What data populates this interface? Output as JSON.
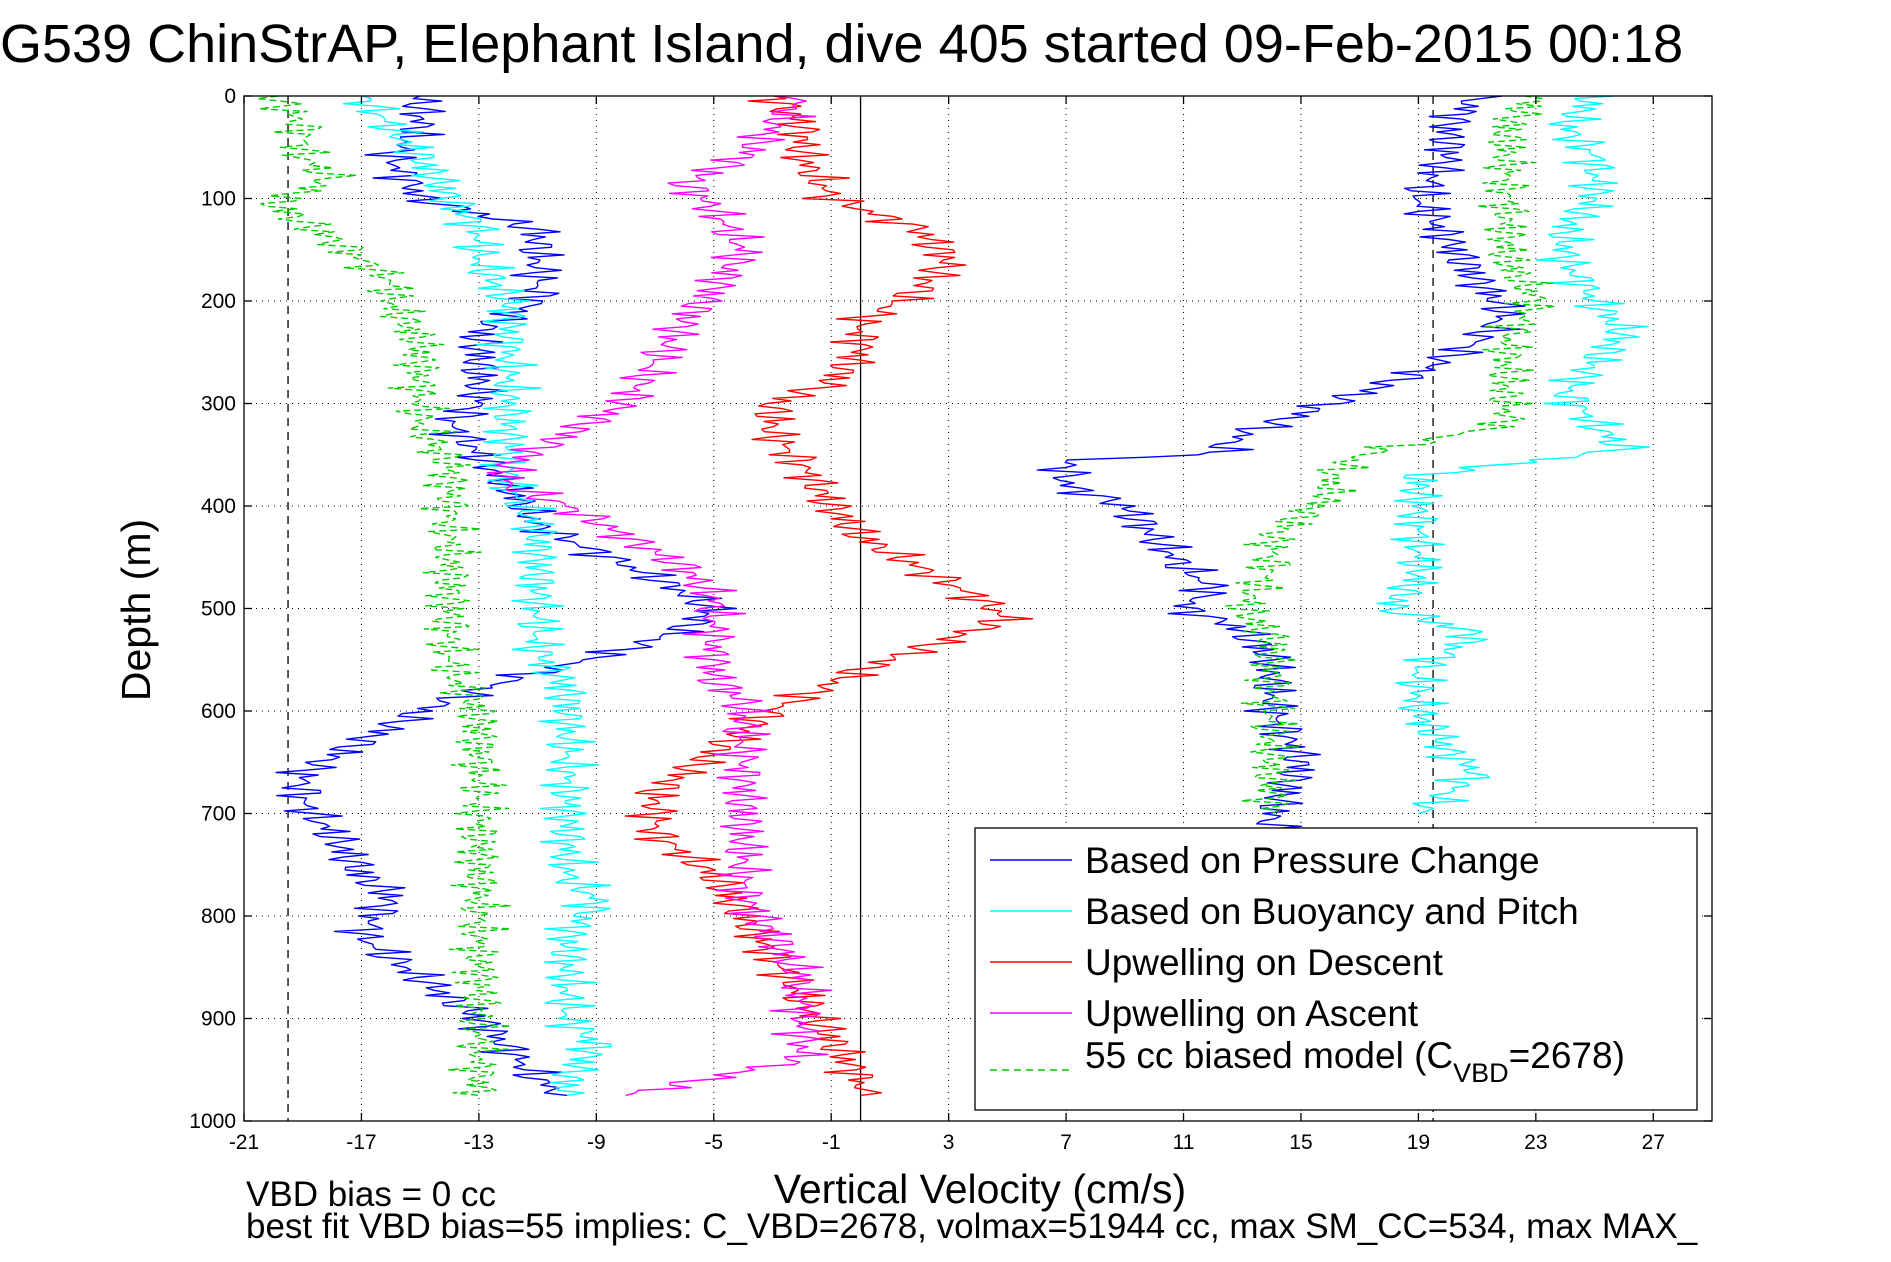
{
  "chart_data": {
    "type": "line",
    "title": "G539 ChinStrAP, Elephant Island, dive 405 started 09-Feb-2015 00:18",
    "xlabel": "Vertical Velocity (cm/s)",
    "ylabel": "Depth (m)",
    "xlim": [
      -21,
      29
    ],
    "ylim": [
      0,
      1000
    ],
    "y_reversed": true,
    "grid": true,
    "legend_position": "bottom-right",
    "x_ticks": [
      -21,
      -17,
      -13,
      -9,
      -5,
      -1,
      3,
      7,
      11,
      15,
      19,
      23,
      27
    ],
    "x_tick_labels": [
      "-21",
      "-17",
      "-13",
      "-9",
      "-5",
      "-1",
      "3",
      "7",
      "11",
      "15",
      "19",
      "23",
      "27"
    ],
    "y_ticks": [
      0,
      100,
      200,
      300,
      400,
      500,
      600,
      700,
      800,
      900,
      1000
    ],
    "y_tick_labels": [
      "0",
      "100",
      "200",
      "300",
      "400",
      "500",
      "600",
      "700",
      "800",
      "900",
      "1000"
    ],
    "reference_lines": [
      {
        "x": -19.5,
        "style": "dashed"
      },
      {
        "x": 0,
        "style": "solid"
      },
      {
        "x": 19.5,
        "style": "dashed"
      }
    ],
    "series": [
      {
        "name": "Based on Pressure Change",
        "color": "#0000ff",
        "depth": [
          0,
          30,
          60,
          100,
          130,
          160,
          200,
          230,
          270,
          300,
          320,
          350,
          380,
          420,
          470,
          500,
          520,
          540,
          570,
          600,
          630,
          660,
          690,
          720,
          760,
          780,
          820,
          860,
          900,
          930,
          960,
          975
        ],
        "velocity": [
          -15,
          -15,
          -16,
          -15,
          -11,
          -11,
          -11,
          -13,
          -13,
          -13,
          -14,
          -13,
          -12,
          -11,
          -7,
          -5,
          -6,
          -8,
          -12,
          -15,
          -17,
          -19,
          -19,
          -18,
          -17,
          -16,
          -17,
          -15,
          -13,
          -12,
          -11,
          -10
        ]
      },
      {
        "name": "Based on Pressure Change",
        "color": "#0000ff",
        "depth": [
          0,
          30,
          60,
          100,
          140,
          180,
          210,
          240,
          270,
          290,
          310,
          330,
          350,
          355,
          380,
          400,
          430,
          460,
          480,
          500,
          520,
          550,
          600,
          650,
          700,
          720
        ],
        "velocity": [
          21,
          20,
          20,
          19,
          20,
          21,
          22,
          21,
          19,
          17,
          15,
          13,
          12,
          7,
          7,
          9,
          10,
          11,
          12,
          11,
          13,
          14,
          14,
          15,
          14,
          14
        ]
      },
      {
        "name": "Based on Buoyancy and Pitch",
        "color": "#00ffff",
        "depth": [
          0,
          30,
          60,
          100,
          130,
          160,
          200,
          250,
          300,
          340,
          380,
          420,
          460,
          500,
          540,
          580,
          620,
          660,
          700,
          760,
          785,
          820,
          860,
          900,
          925,
          960,
          975
        ],
        "velocity": [
          -17,
          -16,
          -15,
          -14,
          -13,
          -13,
          -12,
          -12,
          -12,
          -12,
          -12,
          -11,
          -11,
          -11,
          -11,
          -10,
          -10,
          -10,
          -10,
          -10,
          -9,
          -10,
          -10,
          -10,
          -9,
          -10,
          -10
        ]
      },
      {
        "name": "Based on Buoyancy and Pitch",
        "color": "#00ffff",
        "depth": [
          0,
          30,
          60,
          100,
          130,
          160,
          200,
          230,
          260,
          290,
          320,
          345,
          370,
          400,
          430,
          470,
          500,
          525,
          560,
          600,
          640,
          660,
          700
        ],
        "velocity": [
          25,
          24,
          25,
          25,
          24,
          24,
          25,
          26,
          25,
          24,
          25,
          26,
          19,
          19,
          19,
          19,
          18,
          21,
          19,
          19,
          20,
          21,
          19
        ]
      },
      {
        "name": "Upwelling on Descent",
        "color": "#ff0000",
        "depth": [
          0,
          30,
          60,
          100,
          130,
          160,
          190,
          220,
          250,
          280,
          300,
          330,
          360,
          400,
          430,
          460,
          490,
          510,
          530,
          560,
          600,
          640,
          680,
          720,
          760,
          800,
          840,
          880,
          920,
          960,
          975
        ],
        "velocity": [
          -3,
          -2,
          -2,
          -1,
          2,
          3,
          2,
          0,
          0,
          -1,
          -3,
          -3,
          -2,
          -1,
          0,
          2,
          4,
          5,
          3,
          0,
          -3,
          -5,
          -7,
          -7,
          -5,
          -4,
          -3,
          -2,
          -1,
          0,
          0
        ]
      },
      {
        "name": "Upwelling on Ascent",
        "color": "#ff00ff",
        "depth": [
          0,
          30,
          60,
          85,
          110,
          150,
          190,
          220,
          260,
          300,
          330,
          360,
          380,
          400,
          430,
          460,
          490,
          510,
          540,
          570,
          590,
          620,
          660,
          700,
          740,
          780,
          820,
          860,
          900,
          940,
          975
        ],
        "velocity": [
          -2,
          -3,
          -4,
          -6,
          -5,
          -4,
          -5,
          -6,
          -7,
          -8,
          -10,
          -12,
          -12,
          -10,
          -8,
          -6,
          -5,
          -5,
          -5,
          -5,
          -4,
          -4,
          -4,
          -4,
          -4,
          -4,
          -3,
          -2,
          -2,
          -2,
          -8
        ]
      },
      {
        "name": "55 cc biased model (C_VBD=2678)",
        "color": "#00cc00",
        "dashed": true,
        "depth": [
          0,
          30,
          60,
          80,
          105,
          140,
          180,
          200,
          240,
          280,
          320,
          360,
          400,
          440,
          460,
          480,
          520,
          560,
          600,
          640,
          680,
          720,
          780,
          800,
          840,
          880,
          920,
          960,
          975
        ],
        "velocity": [
          -20,
          -19,
          -19,
          -18,
          -20,
          -18,
          -16,
          -16,
          -15,
          -15,
          -15,
          -14,
          -14,
          -14,
          -14,
          -14,
          -14,
          -14,
          -13,
          -13,
          -13,
          -13,
          -13,
          -13,
          -13,
          -13,
          -13,
          -13,
          -13
        ]
      },
      {
        "name": "55 cc biased model (C_VBD=2678)",
        "color": "#00cc00",
        "dashed": true,
        "depth": [
          0,
          30,
          60,
          100,
          130,
          160,
          200,
          240,
          280,
          320,
          350,
          370,
          390,
          410,
          430,
          460,
          500,
          530,
          560,
          600,
          640,
          680,
          700
        ],
        "velocity": [
          23,
          22,
          22,
          22,
          22,
          22,
          23,
          22,
          22,
          22,
          17,
          16,
          16,
          15,
          14,
          14,
          13,
          14,
          14,
          14,
          14,
          14,
          14
        ]
      }
    ]
  },
  "legend": {
    "items": [
      {
        "label": "Based on Pressure Change",
        "color": "#0000ff",
        "dashed": false
      },
      {
        "label": "Based on Buoyancy and Pitch",
        "color": "#00ffff",
        "dashed": false
      },
      {
        "label": "Upwelling on Descent",
        "color": "#ff0000",
        "dashed": false
      },
      {
        "label": "Upwelling on Ascent",
        "color": "#ff00ff",
        "dashed": false
      },
      {
        "label": "55 cc biased model (C",
        "color": "#00cc00",
        "dashed": true,
        "subscript": "VBD",
        "suffix": "=2678)"
      }
    ]
  },
  "footnotes": {
    "line1": "VBD bias = 0 cc",
    "line2": "best fit VBD bias=55 implies: C_VBD=2678, volmax=51944 cc, max SM_CC=534, max MAX_"
  }
}
